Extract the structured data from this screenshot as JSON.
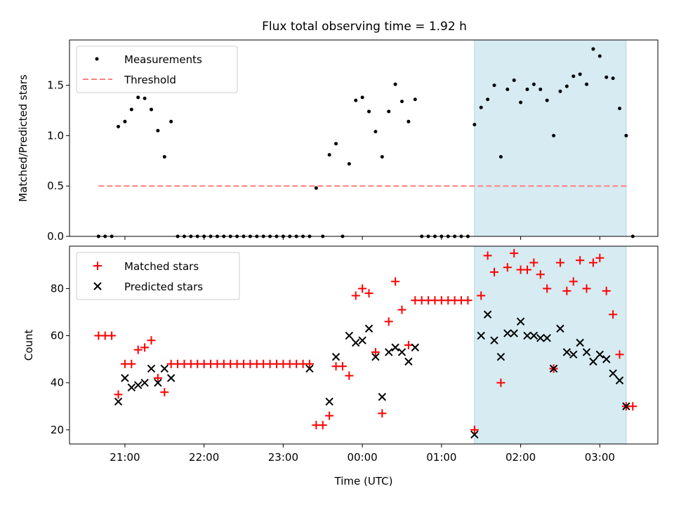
{
  "figure": {
    "title": "Flux total observing time = 1.92 h",
    "xlabel": "Time (UTC)"
  },
  "colors": {
    "measurement": "#000000",
    "threshold": "#ff7f7f",
    "matched": "#ff0000",
    "predicted": "#000000",
    "shade": "#add8e6"
  },
  "chart_data": [
    {
      "type": "scatter",
      "panel": "top",
      "ylabel": "Matched/Predicted stars",
      "xlim": [
        "20:18",
        "03:44"
      ],
      "ylim": [
        0,
        1.95
      ],
      "yticks": [
        0.0,
        0.5,
        1.0,
        1.5
      ],
      "ytick_labels": [
        "0.0",
        "0.5",
        "1.0",
        "1.5"
      ],
      "xticks": [
        "21:00",
        "22:00",
        "23:00",
        "00:00",
        "01:00",
        "02:00",
        "03:00"
      ],
      "shaded_span": [
        "01:25",
        "03:20"
      ],
      "legend": {
        "placement": "upper-left",
        "entries": [
          "Measurements",
          "Threshold"
        ]
      },
      "series": [
        {
          "name": "Measurements",
          "marker": "dot",
          "points": [
            [
              "20:40",
              0
            ],
            [
              "20:45",
              0
            ],
            [
              "20:50",
              0
            ],
            [
              "20:55",
              1.09
            ],
            [
              "21:00",
              1.14
            ],
            [
              "21:05",
              1.26
            ],
            [
              "21:10",
              1.38
            ],
            [
              "21:15",
              1.37
            ],
            [
              "21:20",
              1.26
            ],
            [
              "21:25",
              1.05
            ],
            [
              "21:30",
              0.79
            ],
            [
              "21:35",
              1.14
            ],
            [
              "21:40",
              0
            ],
            [
              "21:45",
              0
            ],
            [
              "21:50",
              0
            ],
            [
              "21:55",
              0
            ],
            [
              "22:00",
              0
            ],
            [
              "22:05",
              0
            ],
            [
              "22:10",
              0
            ],
            [
              "22:15",
              0
            ],
            [
              "22:20",
              0
            ],
            [
              "22:25",
              0
            ],
            [
              "22:30",
              0
            ],
            [
              "22:35",
              0
            ],
            [
              "22:40",
              0
            ],
            [
              "22:45",
              0
            ],
            [
              "22:50",
              0
            ],
            [
              "22:55",
              0
            ],
            [
              "23:00",
              0
            ],
            [
              "23:05",
              0
            ],
            [
              "23:10",
              0
            ],
            [
              "23:15",
              0
            ],
            [
              "23:20",
              0
            ],
            [
              "23:25",
              0.48
            ],
            [
              "23:30",
              0
            ],
            [
              "23:35",
              0.81
            ],
            [
              "23:40",
              0.92
            ],
            [
              "23:45",
              0
            ],
            [
              "23:50",
              0.72
            ],
            [
              "23:55",
              1.35
            ],
            [
              "00:00",
              1.38
            ],
            [
              "00:05",
              1.24
            ],
            [
              "00:10",
              1.04
            ],
            [
              "00:15",
              0.79
            ],
            [
              "00:20",
              1.24
            ],
            [
              "00:25",
              1.51
            ],
            [
              "00:30",
              1.34
            ],
            [
              "00:35",
              1.14
            ],
            [
              "00:40",
              1.36
            ],
            [
              "00:45",
              0
            ],
            [
              "00:50",
              0
            ],
            [
              "00:55",
              0
            ],
            [
              "01:00",
              0
            ],
            [
              "01:05",
              0
            ],
            [
              "01:10",
              0
            ],
            [
              "01:15",
              0
            ],
            [
              "01:20",
              0
            ],
            [
              "01:25",
              1.11
            ],
            [
              "01:30",
              1.28
            ],
            [
              "01:35",
              1.36
            ],
            [
              "01:40",
              1.5
            ],
            [
              "01:45",
              0.79
            ],
            [
              "01:50",
              1.46
            ],
            [
              "01:55",
              1.55
            ],
            [
              "02:00",
              1.33
            ],
            [
              "02:05",
              1.46
            ],
            [
              "02:10",
              1.51
            ],
            [
              "02:15",
              1.46
            ],
            [
              "02:20",
              1.35
            ],
            [
              "02:25",
              1.0
            ],
            [
              "02:30",
              1.44
            ],
            [
              "02:35",
              1.49
            ],
            [
              "02:40",
              1.59
            ],
            [
              "02:45",
              1.61
            ],
            [
              "02:50",
              1.51
            ],
            [
              "02:55",
              1.86
            ],
            [
              "03:00",
              1.79
            ],
            [
              "03:05",
              1.58
            ],
            [
              "03:10",
              1.57
            ],
            [
              "03:15",
              1.27
            ],
            [
              "03:20",
              1.0
            ],
            [
              "03:25",
              0
            ]
          ]
        },
        {
          "name": "Threshold",
          "line": "dashed",
          "points": [
            [
              "20:40",
              0.5
            ],
            [
              "03:22",
              0.5
            ]
          ]
        }
      ]
    },
    {
      "type": "scatter",
      "panel": "bottom",
      "ylabel": "Count",
      "xlim": [
        "20:18",
        "03:44"
      ],
      "ylim": [
        14,
        98
      ],
      "yticks": [
        20,
        40,
        60,
        80
      ],
      "ytick_labels": [
        "20",
        "40",
        "60",
        "80"
      ],
      "xticks": [
        "21:00",
        "22:00",
        "23:00",
        "00:00",
        "01:00",
        "02:00",
        "03:00"
      ],
      "xtick_labels": [
        "21:00",
        "22:00",
        "23:00",
        "00:00",
        "01:00",
        "02:00",
        "03:00"
      ],
      "shaded_span": [
        "01:25",
        "03:20"
      ],
      "legend": {
        "placement": "upper-left",
        "entries": [
          "Matched stars",
          "Predicted stars"
        ]
      },
      "series": [
        {
          "name": "Matched stars",
          "marker": "plus",
          "points": [
            [
              "20:40",
              60
            ],
            [
              "20:45",
              60
            ],
            [
              "20:50",
              60
            ],
            [
              "20:55",
              35
            ],
            [
              "21:00",
              48
            ],
            [
              "21:05",
              48
            ],
            [
              "21:10",
              54
            ],
            [
              "21:15",
              55
            ],
            [
              "21:20",
              58
            ],
            [
              "21:25",
              42
            ],
            [
              "21:30",
              36
            ],
            [
              "21:35",
              48
            ],
            [
              "21:40",
              48
            ],
            [
              "21:45",
              48
            ],
            [
              "21:50",
              48
            ],
            [
              "21:55",
              48
            ],
            [
              "22:00",
              48
            ],
            [
              "22:05",
              48
            ],
            [
              "22:10",
              48
            ],
            [
              "22:15",
              48
            ],
            [
              "22:20",
              48
            ],
            [
              "22:25",
              48
            ],
            [
              "22:30",
              48
            ],
            [
              "22:35",
              48
            ],
            [
              "22:40",
              48
            ],
            [
              "22:45",
              48
            ],
            [
              "22:50",
              48
            ],
            [
              "22:55",
              48
            ],
            [
              "23:00",
              48
            ],
            [
              "23:05",
              48
            ],
            [
              "23:10",
              48
            ],
            [
              "23:15",
              48
            ],
            [
              "23:20",
              48
            ],
            [
              "23:25",
              22
            ],
            [
              "23:30",
              22
            ],
            [
              "23:35",
              26
            ],
            [
              "23:40",
              47
            ],
            [
              "23:45",
              47
            ],
            [
              "23:50",
              43
            ],
            [
              "23:55",
              77
            ],
            [
              "00:00",
              80
            ],
            [
              "00:05",
              78
            ],
            [
              "00:10",
              53
            ],
            [
              "00:15",
              27
            ],
            [
              "00:20",
              66
            ],
            [
              "00:25",
              83
            ],
            [
              "00:30",
              71
            ],
            [
              "00:35",
              56
            ],
            [
              "00:40",
              75
            ],
            [
              "00:45",
              75
            ],
            [
              "00:50",
              75
            ],
            [
              "00:55",
              75
            ],
            [
              "01:00",
              75
            ],
            [
              "01:05",
              75
            ],
            [
              "01:10",
              75
            ],
            [
              "01:15",
              75
            ],
            [
              "01:20",
              75
            ],
            [
              "01:25",
              20
            ],
            [
              "01:30",
              77
            ],
            [
              "01:35",
              94
            ],
            [
              "01:40",
              87
            ],
            [
              "01:45",
              40
            ],
            [
              "01:50",
              89
            ],
            [
              "01:55",
              95
            ],
            [
              "02:00",
              88
            ],
            [
              "02:05",
              88
            ],
            [
              "02:10",
              91
            ],
            [
              "02:15",
              86
            ],
            [
              "02:20",
              80
            ],
            [
              "02:25",
              46
            ],
            [
              "02:30",
              91
            ],
            [
              "02:35",
              79
            ],
            [
              "02:40",
              83
            ],
            [
              "02:45",
              92
            ],
            [
              "02:50",
              80
            ],
            [
              "02:55",
              91
            ],
            [
              "03:00",
              93
            ],
            [
              "03:05",
              79
            ],
            [
              "03:10",
              69
            ],
            [
              "03:15",
              52
            ],
            [
              "03:20",
              30
            ],
            [
              "03:25",
              30
            ]
          ]
        },
        {
          "name": "Predicted stars",
          "marker": "x",
          "points": [
            [
              "20:55",
              32
            ],
            [
              "21:00",
              42
            ],
            [
              "21:05",
              38
            ],
            [
              "21:10",
              39
            ],
            [
              "21:15",
              40
            ],
            [
              "21:20",
              46
            ],
            [
              "21:25",
              40
            ],
            [
              "21:30",
              46
            ],
            [
              "21:35",
              42
            ],
            [
              "23:20",
              46
            ],
            [
              "23:35",
              32
            ],
            [
              "23:40",
              51
            ],
            [
              "23:50",
              60
            ],
            [
              "23:55",
              57
            ],
            [
              "00:00",
              58
            ],
            [
              "00:05",
              63
            ],
            [
              "00:10",
              51
            ],
            [
              "00:15",
              34
            ],
            [
              "00:20",
              53
            ],
            [
              "00:25",
              55
            ],
            [
              "00:30",
              53
            ],
            [
              "00:35",
              49
            ],
            [
              "00:40",
              55
            ],
            [
              "01:25",
              18
            ],
            [
              "01:30",
              60
            ],
            [
              "01:35",
              69
            ],
            [
              "01:40",
              58
            ],
            [
              "01:45",
              51
            ],
            [
              "01:50",
              61
            ],
            [
              "01:55",
              61
            ],
            [
              "02:00",
              66
            ],
            [
              "02:05",
              60
            ],
            [
              "02:10",
              60
            ],
            [
              "02:15",
              59
            ],
            [
              "02:20",
              59
            ],
            [
              "02:25",
              46
            ],
            [
              "02:30",
              63
            ],
            [
              "02:35",
              53
            ],
            [
              "02:40",
              52
            ],
            [
              "02:45",
              57
            ],
            [
              "02:50",
              53
            ],
            [
              "02:55",
              49
            ],
            [
              "03:00",
              52
            ],
            [
              "03:05",
              50
            ],
            [
              "03:10",
              44
            ],
            [
              "03:15",
              41
            ],
            [
              "03:20",
              30
            ]
          ]
        }
      ]
    }
  ]
}
